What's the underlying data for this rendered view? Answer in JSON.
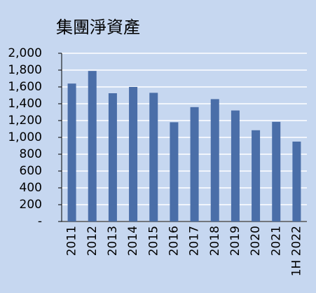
{
  "chart_data": {
    "type": "bar",
    "title": "集團淨資產",
    "categories": [
      "2011",
      "2012",
      "2013",
      "2014",
      "2015",
      "2016",
      "2017",
      "2018",
      "2019",
      "2020",
      "2021",
      "1H 2022"
    ],
    "values": [
      1640,
      1790,
      1525,
      1600,
      1530,
      1180,
      1360,
      1455,
      1320,
      1085,
      1185,
      950
    ],
    "color": "#4a6ea8",
    "ylim": [
      0,
      2000
    ],
    "yticks": [
      {
        "value": 0,
        "label": "-"
      },
      200,
      400,
      600,
      800,
      {
        "value": 1000,
        "label": "1,000"
      },
      {
        "value": 1200,
        "label": "1,200"
      },
      {
        "value": 1400,
        "label": "1,400"
      },
      {
        "value": 1600,
        "label": "1,600"
      },
      {
        "value": 1800,
        "label": "1,800"
      },
      {
        "value": 2000,
        "label": "2,000"
      }
    ],
    "grid": true
  }
}
